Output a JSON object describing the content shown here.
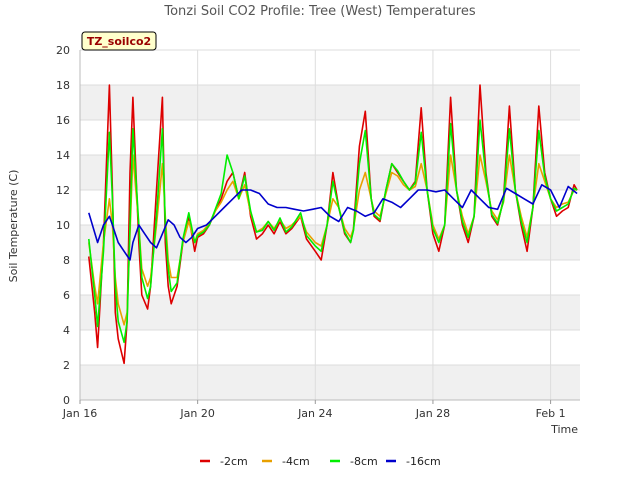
{
  "chart_data": {
    "type": "line",
    "title": "Tonzi Soil CO2 Profile: Tree (West) Temperatures",
    "xlabel": "Time",
    "ylabel": "Soil Temperature (C)",
    "site_label": "TZ_soilco2",
    "xlim": [
      0,
      17
    ],
    "ylim": [
      0,
      20
    ],
    "y_ticks": [
      0,
      2,
      4,
      6,
      8,
      10,
      12,
      14,
      16,
      18,
      20
    ],
    "x_ticks": [
      {
        "day": 0,
        "label": "Jan 16"
      },
      {
        "day": 4,
        "label": "Jan 20"
      },
      {
        "day": 8,
        "label": "Jan 24"
      },
      {
        "day": 12,
        "label": "Jan 28"
      },
      {
        "day": 16,
        "label": "Feb 1"
      }
    ],
    "grid": true,
    "legend_position": "bottom",
    "series": [
      {
        "name": "-2cm",
        "color": "#dd0000",
        "x": [
          0.3,
          0.5,
          0.6,
          0.8,
          1.0,
          1.1,
          1.2,
          1.3,
          1.5,
          1.6,
          1.7,
          1.8,
          2.0,
          2.1,
          2.3,
          2.4,
          2.6,
          2.8,
          2.9,
          3.0,
          3.1,
          3.3,
          3.5,
          3.7,
          3.9,
          4.0,
          4.2,
          4.4,
          4.6,
          4.8,
          5.0,
          5.2,
          5.4,
          5.6,
          5.8,
          6.0,
          6.2,
          6.4,
          6.6,
          6.8,
          7.0,
          7.2,
          7.5,
          7.7,
          8.0,
          8.2,
          8.4,
          8.6,
          8.8,
          9.0,
          9.2,
          9.3,
          9.5,
          9.7,
          9.9,
          10.0,
          10.2,
          10.4,
          10.6,
          10.8,
          11.0,
          11.2,
          11.4,
          11.6,
          11.8,
          12.0,
          12.2,
          12.4,
          12.6,
          12.8,
          13.0,
          13.2,
          13.4,
          13.6,
          13.8,
          14.0,
          14.2,
          14.4,
          14.6,
          14.8,
          15.0,
          15.2,
          15.4,
          15.6,
          15.8,
          16.0,
          16.2,
          16.4,
          16.6,
          16.8,
          16.9
        ],
        "y": [
          8.2,
          5.0,
          3.0,
          9.0,
          18.0,
          12.0,
          5.0,
          3.5,
          2.1,
          4.5,
          13.0,
          17.3,
          9.0,
          6.0,
          5.2,
          6.5,
          12.0,
          17.3,
          9.0,
          6.5,
          5.5,
          6.5,
          9.0,
          10.5,
          8.5,
          9.3,
          9.5,
          10.0,
          10.8,
          11.5,
          12.5,
          13.0,
          11.5,
          13.0,
          10.5,
          9.2,
          9.5,
          10.0,
          9.5,
          10.2,
          9.5,
          9.8,
          10.5,
          9.2,
          8.5,
          8.0,
          10.0,
          13.0,
          11.0,
          9.5,
          9.0,
          9.8,
          14.5,
          16.5,
          11.5,
          10.5,
          10.2,
          12.0,
          13.5,
          13.0,
          12.5,
          12.0,
          12.5,
          16.7,
          12.0,
          9.5,
          8.5,
          10.0,
          17.3,
          12.0,
          10.0,
          9.0,
          10.5,
          18.0,
          13.0,
          10.5,
          10.0,
          11.5,
          16.8,
          12.0,
          10.0,
          8.5,
          11.0,
          16.8,
          13.0,
          11.5,
          10.5,
          10.8,
          11.0,
          12.3,
          12.0
        ]
      },
      {
        "name": "-4cm",
        "color": "#e8a000",
        "x": [
          0.3,
          0.5,
          0.6,
          0.8,
          1.0,
          1.1,
          1.2,
          1.3,
          1.5,
          1.6,
          1.7,
          1.8,
          2.0,
          2.1,
          2.3,
          2.4,
          2.6,
          2.8,
          2.9,
          3.0,
          3.1,
          3.3,
          3.5,
          3.7,
          3.9,
          4.0,
          4.2,
          4.4,
          4.6,
          4.8,
          5.0,
          5.2,
          5.4,
          5.6,
          5.8,
          6.0,
          6.2,
          6.4,
          6.6,
          6.8,
          7.0,
          7.2,
          7.5,
          7.7,
          8.0,
          8.2,
          8.4,
          8.6,
          8.8,
          9.0,
          9.2,
          9.3,
          9.5,
          9.7,
          9.9,
          10.0,
          10.2,
          10.4,
          10.6,
          10.8,
          11.0,
          11.2,
          11.4,
          11.6,
          11.8,
          12.0,
          12.2,
          12.4,
          12.6,
          12.8,
          13.0,
          13.2,
          13.4,
          13.6,
          13.8,
          14.0,
          14.2,
          14.4,
          14.6,
          14.8,
          15.0,
          15.2,
          15.4,
          15.6,
          15.8,
          16.0,
          16.2,
          16.4,
          16.6,
          16.8,
          16.9
        ],
        "y": [
          9.0,
          6.5,
          5.5,
          9.0,
          11.5,
          10.0,
          7.0,
          5.5,
          4.3,
          5.0,
          9.5,
          14.0,
          10.0,
          7.5,
          6.5,
          7.0,
          10.0,
          13.5,
          10.5,
          8.0,
          7.0,
          7.0,
          9.0,
          10.2,
          9.0,
          9.5,
          9.7,
          10.1,
          10.8,
          11.3,
          12.0,
          12.5,
          11.5,
          12.3,
          10.7,
          9.6,
          9.8,
          10.2,
          9.8,
          10.3,
          9.8,
          10.0,
          10.5,
          9.6,
          9.0,
          8.8,
          10.0,
          11.5,
          11.0,
          9.8,
          9.3,
          9.8,
          12.0,
          13.0,
          11.5,
          10.8,
          10.5,
          11.8,
          13.0,
          12.8,
          12.3,
          12.0,
          12.2,
          13.5,
          12.0,
          10.0,
          9.2,
          10.0,
          14.0,
          12.0,
          10.5,
          9.5,
          10.5,
          14.0,
          12.5,
          10.8,
          10.3,
          11.3,
          14.0,
          12.0,
          10.5,
          9.3,
          11.0,
          13.5,
          12.5,
          11.5,
          11.0,
          11.2,
          11.3,
          12.0,
          12.0
        ]
      },
      {
        "name": "-8cm",
        "color": "#00ee00",
        "x": [
          0.3,
          0.5,
          0.6,
          0.8,
          1.0,
          1.1,
          1.2,
          1.3,
          1.5,
          1.6,
          1.7,
          1.8,
          2.0,
          2.1,
          2.3,
          2.4,
          2.6,
          2.8,
          2.9,
          3.0,
          3.1,
          3.3,
          3.5,
          3.7,
          3.9,
          4.0,
          4.2,
          4.4,
          4.6,
          4.8,
          5.0,
          5.2,
          5.4,
          5.6,
          5.8,
          6.0,
          6.2,
          6.4,
          6.6,
          6.8,
          7.0,
          7.2,
          7.5,
          7.7,
          8.0,
          8.2,
          8.4,
          8.6,
          8.8,
          9.0,
          9.2,
          9.3,
          9.5,
          9.7,
          9.9,
          10.0,
          10.2,
          10.4,
          10.6,
          10.8,
          11.0,
          11.2,
          11.4,
          11.6,
          11.8,
          12.0,
          12.2,
          12.4,
          12.6,
          12.8,
          13.0,
          13.2,
          13.4,
          13.6,
          13.8,
          14.0,
          14.2,
          14.4,
          14.6,
          14.8,
          15.0,
          15.2,
          15.4,
          15.6,
          15.8,
          16.0,
          16.2,
          16.4,
          16.6,
          16.8,
          16.9
        ],
        "y": [
          9.2,
          6.0,
          4.2,
          8.5,
          15.3,
          11.5,
          6.5,
          4.5,
          3.3,
          4.5,
          10.0,
          15.5,
          10.0,
          7.0,
          5.8,
          6.5,
          10.5,
          15.5,
          10.0,
          7.5,
          6.2,
          6.7,
          9.2,
          10.7,
          9.0,
          9.4,
          9.6,
          10.0,
          10.9,
          11.8,
          14.0,
          13.0,
          11.5,
          12.8,
          10.8,
          9.6,
          9.7,
          10.2,
          9.7,
          10.4,
          9.6,
          9.9,
          10.7,
          9.4,
          8.8,
          8.5,
          10.0,
          12.5,
          11.0,
          9.6,
          9.0,
          9.7,
          13.5,
          15.4,
          11.5,
          10.6,
          10.3,
          12.0,
          13.5,
          13.1,
          12.5,
          12.0,
          12.4,
          15.3,
          12.0,
          9.8,
          9.0,
          10.0,
          15.8,
          12.0,
          10.2,
          9.3,
          10.5,
          16.0,
          12.8,
          10.6,
          10.1,
          11.4,
          15.5,
          12.0,
          10.2,
          9.0,
          11.0,
          15.4,
          12.8,
          11.5,
          10.8,
          11.0,
          11.2,
          12.1,
          12.0
        ]
      },
      {
        "name": "-16cm",
        "color": "#0000cc",
        "x": [
          0.3,
          0.6,
          0.8,
          1.0,
          1.1,
          1.3,
          1.5,
          1.7,
          1.8,
          2.0,
          2.2,
          2.4,
          2.6,
          2.8,
          3.0,
          3.2,
          3.4,
          3.6,
          3.8,
          4.0,
          4.3,
          4.6,
          4.9,
          5.2,
          5.5,
          5.8,
          6.1,
          6.4,
          6.7,
          7.0,
          7.3,
          7.6,
          7.9,
          8.2,
          8.5,
          8.8,
          9.1,
          9.4,
          9.7,
          10.0,
          10.3,
          10.6,
          10.9,
          11.2,
          11.5,
          11.8,
          12.1,
          12.4,
          12.7,
          13.0,
          13.3,
          13.6,
          13.9,
          14.2,
          14.5,
          14.8,
          15.1,
          15.4,
          15.7,
          16.0,
          16.3,
          16.6,
          16.9
        ],
        "y": [
          10.7,
          9.0,
          10.0,
          10.5,
          10.0,
          9.0,
          8.5,
          8.0,
          9.0,
          10.0,
          9.5,
          9.0,
          8.7,
          9.5,
          10.3,
          10.0,
          9.3,
          9.0,
          9.3,
          9.8,
          10.0,
          10.5,
          11.0,
          11.5,
          12.0,
          12.0,
          11.8,
          11.2,
          11.0,
          11.0,
          10.9,
          10.8,
          10.9,
          11.0,
          10.5,
          10.2,
          11.0,
          10.8,
          10.5,
          10.7,
          11.5,
          11.3,
          11.0,
          11.5,
          12.0,
          12.0,
          11.9,
          12.0,
          11.5,
          11.0,
          12.0,
          11.5,
          11.0,
          10.9,
          12.1,
          11.8,
          11.5,
          11.2,
          12.3,
          12.0,
          11.0,
          12.2,
          11.8
        ]
      }
    ]
  }
}
